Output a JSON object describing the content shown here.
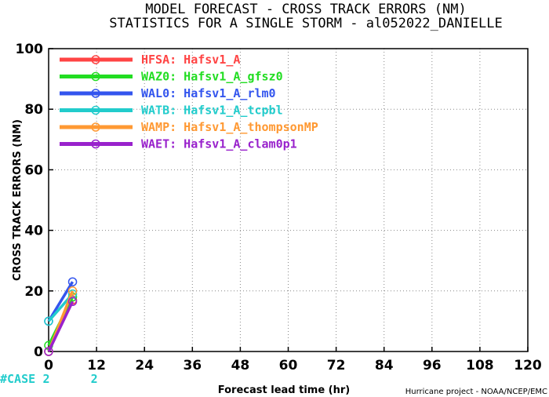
{
  "chart_data": {
    "type": "line",
    "title": "MODEL FORECAST - CROSS TRACK ERRORS (NM)",
    "subtitle": "STATISTICS FOR A SINGLE STORM - al052022_DANIELLE",
    "xlabel": "Forecast lead time (hr)",
    "ylabel": "CROSS TRACK ERRORS (NM)",
    "xlim": [
      0,
      120
    ],
    "ylim": [
      0,
      100
    ],
    "x_ticks": [
      "0",
      "12",
      "24",
      "36",
      "48",
      "60",
      "72",
      "84",
      "96",
      "108",
      "120"
    ],
    "y_ticks": [
      "0",
      "20",
      "40",
      "60",
      "80",
      "100"
    ],
    "grid": true,
    "legend_position": "top-left",
    "credit": "Hurricane project - NOAA/NCEP/EMC",
    "cases_label": "#CASE",
    "cases": [
      "2",
      "2"
    ],
    "cases_color": "#22cccc",
    "series": [
      {
        "name": "HFSA: Hafsv1_A",
        "color": "#ff4444",
        "x": [
          0,
          6
        ],
        "y": [
          0,
          17
        ]
      },
      {
        "name": "WAZ0: Hafsv1_A_gfsz0",
        "color": "#22dd22",
        "x": [
          0,
          6
        ],
        "y": [
          2,
          18
        ]
      },
      {
        "name": "WAL0: Hafsv1_A_rlm0",
        "color": "#3355ee",
        "x": [
          0,
          6
        ],
        "y": [
          10,
          23
        ]
      },
      {
        "name": "WATB: Hafsv1_A_tcpbl",
        "color": "#22cccc",
        "x": [
          0,
          6
        ],
        "y": [
          10,
          19
        ]
      },
      {
        "name": "WAMP: Hafsv1_A_thompsonMP",
        "color": "#ff9933",
        "x": [
          0,
          6
        ],
        "y": [
          0,
          20
        ]
      },
      {
        "name": "WAET: Hafsv1_A_clam0p1",
        "color": "#9922cc",
        "x": [
          0,
          6
        ],
        "y": [
          0,
          16.5
        ]
      }
    ]
  }
}
